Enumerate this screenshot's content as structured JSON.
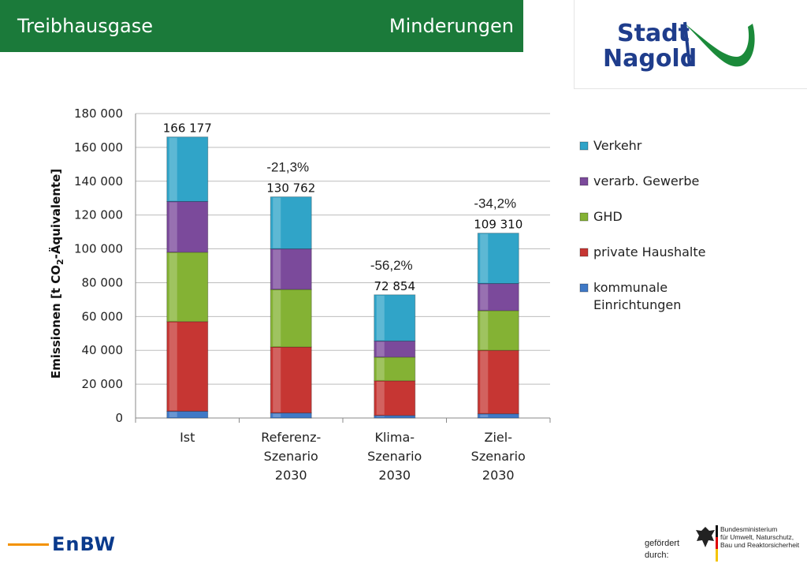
{
  "header": {
    "title_left": "Treibhausgase",
    "title_right": "Minderungen"
  },
  "logo": {
    "line1": "Stadt",
    "line2": "Nagold"
  },
  "footer": {
    "enbw": "EnBW",
    "funded_by_1": "gefördert",
    "funded_by_2": "durch:",
    "ministry_1": "Bundesministerium",
    "ministry_2": "für Umwelt, Naturschutz,",
    "ministry_3": "Bau und Reaktorsicherheit"
  },
  "colors": {
    "header_bg": "#1b7a3a",
    "verkehr": "#30a4c8",
    "gewerbe": "#7b4a9b",
    "ghd": "#84b234",
    "haushalte": "#c63633",
    "kommunal": "#3f79c6",
    "enbw_orange": "#f39200",
    "enbw_blue": "#0a3a8c"
  },
  "chart_data": {
    "type": "bar",
    "stacked": true,
    "ylabel": "Emissionen [t CO2-Äquivalente]",
    "ylim": [
      0,
      180000
    ],
    "yticks": [
      "0",
      "20 000",
      "40 000",
      "60 000",
      "80 000",
      "100 000",
      "120 000",
      "140 000",
      "160 000",
      "180 000"
    ],
    "grid": true,
    "legend_position": "right",
    "categories": [
      [
        "Ist"
      ],
      [
        "Referenz-",
        "Szenario",
        "2030"
      ],
      [
        "Klima-",
        "Szenario",
        "2030"
      ],
      [
        "Ziel-",
        "Szenario",
        "2030"
      ]
    ],
    "series": [
      {
        "name": "kommunale Einrichtungen",
        "legend_lines": [
          "kommunale",
          "Einrichtungen"
        ],
        "color": "#3f79c6",
        "values": [
          4000,
          3000,
          1500,
          2500
        ]
      },
      {
        "name": "private Haushalte",
        "legend_lines": [
          "private Haushalte"
        ],
        "color": "#c63633",
        "values": [
          53000,
          39000,
          20500,
          37500
        ]
      },
      {
        "name": "GHD",
        "legend_lines": [
          "GHD"
        ],
        "color": "#84b234",
        "values": [
          41000,
          34000,
          14000,
          23500
        ]
      },
      {
        "name": "verarb. Gewerbe",
        "legend_lines": [
          "verarb. Gewerbe"
        ],
        "color": "#7b4a9b",
        "values": [
          30000,
          24000,
          9500,
          16000
        ]
      },
      {
        "name": "Verkehr",
        "legend_lines": [
          "Verkehr"
        ],
        "color": "#30a4c8",
        "values": [
          38177,
          30762,
          27354,
          29810
        ]
      }
    ],
    "totals": [
      166177,
      130762,
      72854,
      109310
    ],
    "total_labels": [
      "166 177",
      "130 762",
      "72 854",
      "109 310"
    ],
    "change_labels": [
      "",
      "-21,3%",
      "-56,2%",
      "-34,2%"
    ]
  }
}
